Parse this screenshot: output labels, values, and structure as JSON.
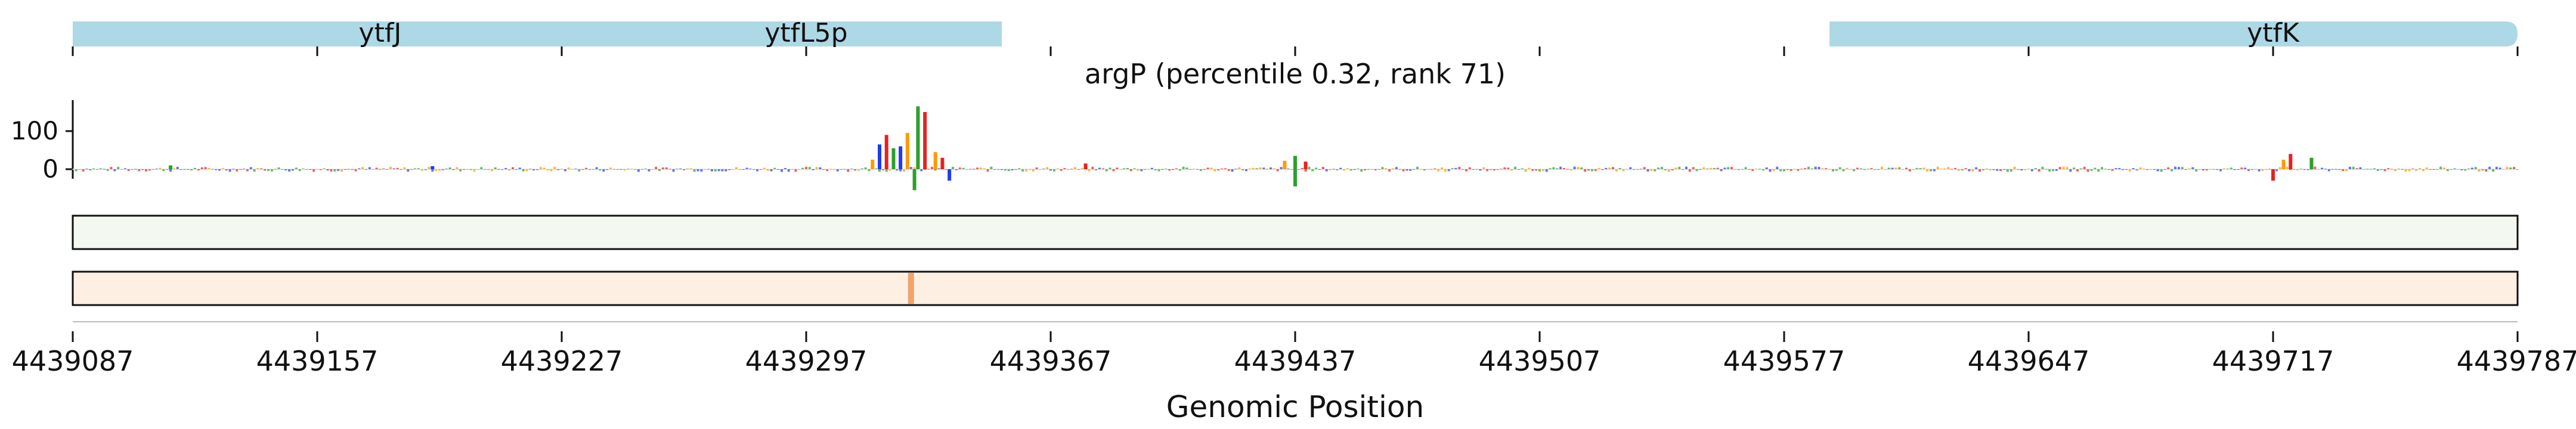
{
  "colors": {
    "gene": "#add8e6",
    "A": "#2ca02c",
    "C": "#1f3cf0",
    "G": "#ff9a00",
    "T": "#e8211e",
    "track1_fill": "#f3f8f0",
    "track2_fill": "#fdf0e2",
    "track2_hot": "#f2a36a"
  },
  "chart_data": {
    "type": "genome-track",
    "title": "argP (percentile 0.32, rank 71)",
    "xlabel": "Genomic Position",
    "xlim": [
      4439087,
      4439787
    ],
    "xticks": [
      "4439087",
      "4439157",
      "4439227",
      "4439297",
      "4439367",
      "4439437",
      "4439507",
      "4439577",
      "4439647",
      "4439717",
      "4439787"
    ],
    "genes": [
      {
        "name": "ytfJ",
        "start": 4439087,
        "end": 4439330,
        "label_at": 4439175
      },
      {
        "name": "ytfL5p",
        "start": 4439200,
        "end": 4439353,
        "label_at": 4439297
      },
      {
        "name": "ytfK",
        "start": 4439590,
        "end": 4439787,
        "label_at": 4439717
      }
    ],
    "attribution_yticks": [
      100,
      0
    ],
    "attribution_ylim": [
      -60,
      190
    ],
    "attribution_peaks": [
      {
        "pos": 4439329,
        "value": 165,
        "base": "A"
      },
      {
        "pos": 4439331,
        "value": 150,
        "base": "T"
      },
      {
        "pos": 4439326,
        "value": 95,
        "base": "G"
      },
      {
        "pos": 4439320,
        "value": 90,
        "base": "T"
      },
      {
        "pos": 4439318,
        "value": 65,
        "base": "C"
      },
      {
        "pos": 4439322,
        "value": 55,
        "base": "A"
      },
      {
        "pos": 4439324,
        "value": 60,
        "base": "C"
      },
      {
        "pos": 4439334,
        "value": 45,
        "base": "G"
      },
      {
        "pos": 4439336,
        "value": 30,
        "base": "T"
      },
      {
        "pos": 4439316,
        "value": 25,
        "base": "G"
      },
      {
        "pos": 4439328,
        "value": -55,
        "base": "A"
      },
      {
        "pos": 4439338,
        "value": -30,
        "base": "C"
      },
      {
        "pos": 4439437,
        "value": 35,
        "base": "A"
      },
      {
        "pos": 4439434,
        "value": 22,
        "base": "G"
      },
      {
        "pos": 4439440,
        "value": 20,
        "base": "T"
      },
      {
        "pos": 4439437,
        "value": -45,
        "base": "A"
      },
      {
        "pos": 4439377,
        "value": 15,
        "base": "T"
      },
      {
        "pos": 4439722,
        "value": 40,
        "base": "T"
      },
      {
        "pos": 4439728,
        "value": 30,
        "base": "A"
      },
      {
        "pos": 4439720,
        "value": 25,
        "base": "G"
      },
      {
        "pos": 4439717,
        "value": -30,
        "base": "T"
      },
      {
        "pos": 4439115,
        "value": 10,
        "base": "A"
      },
      {
        "pos": 4439190,
        "value": 8,
        "base": "C"
      }
    ],
    "track2_hotspot": 4439327
  }
}
